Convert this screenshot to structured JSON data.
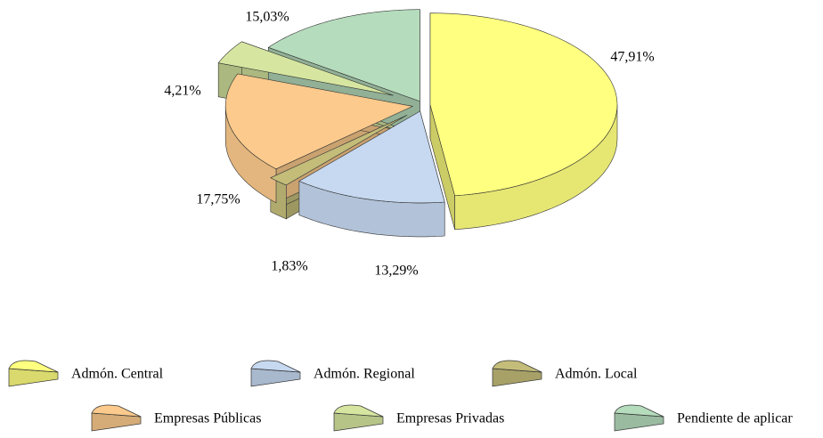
{
  "chart_data": {
    "type": "pie3d",
    "categories": [
      "Admón. Central",
      "Admón. Regional",
      "Admón. Local",
      "Empresas Públicas",
      "Empresas Privadas",
      "Pendiente de aplicar"
    ],
    "values": [
      47.91,
      13.29,
      1.83,
      17.75,
      4.21,
      15.03
    ],
    "value_labels": [
      "47,91%",
      "13,29%",
      "1,83%",
      "17,75%",
      "4,21%",
      "15,03%"
    ],
    "colors": [
      "#ffff80",
      "#c6d9f1",
      "#c4bd7a",
      "#fbca8c",
      "#d6e6a0",
      "#b5dcbc"
    ],
    "legend": "bottom"
  }
}
